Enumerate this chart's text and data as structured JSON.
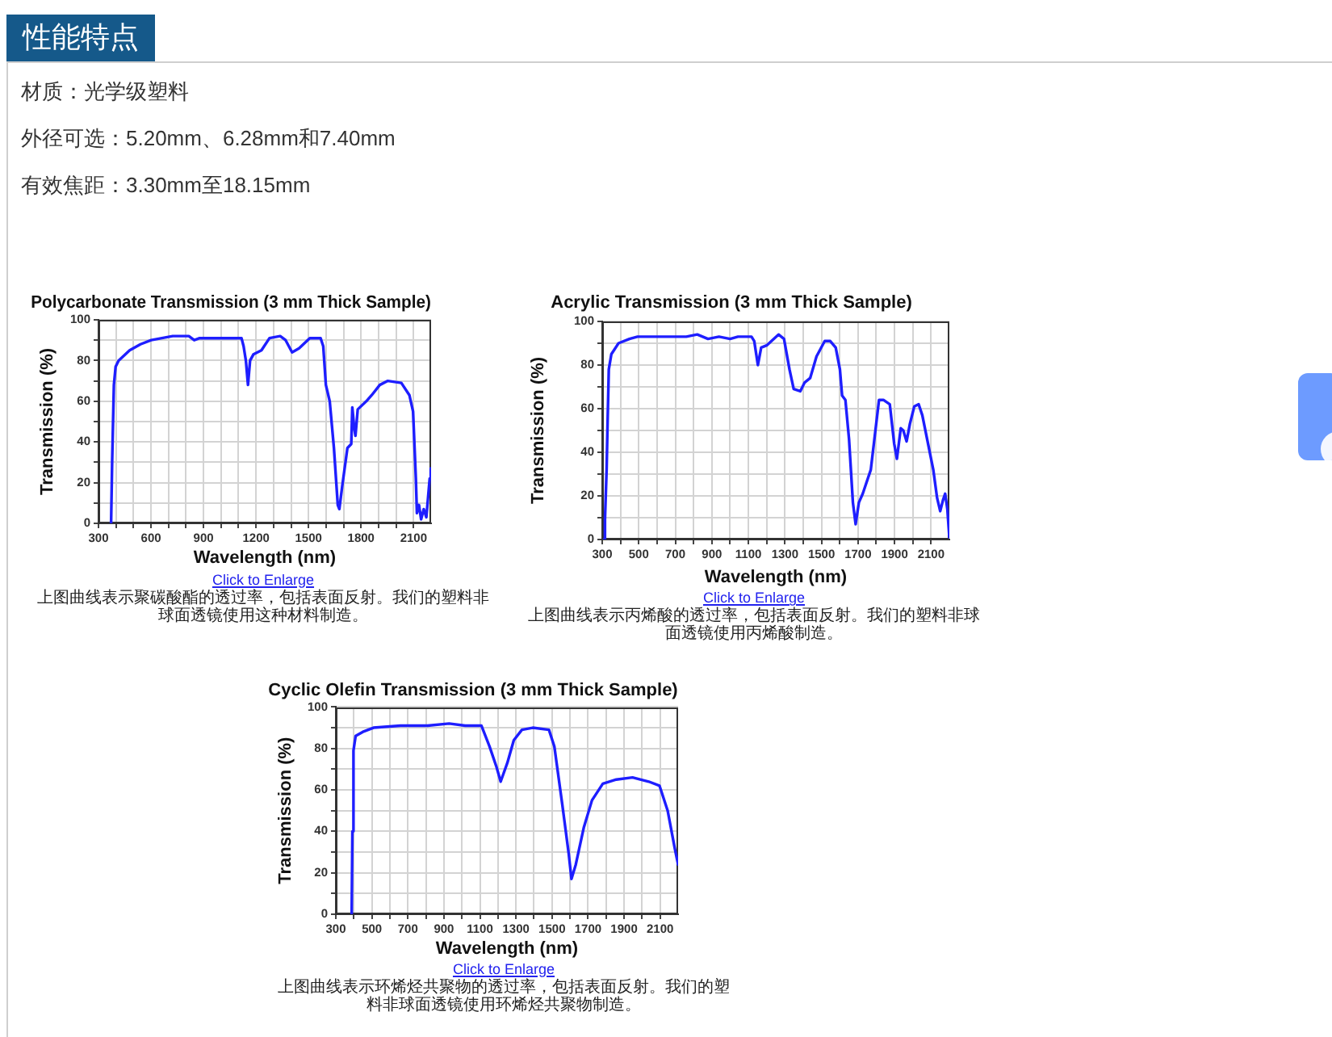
{
  "chart_data": [
    {
      "type": "other",
      "title": "性能特点",
      "annotations": [
        "材质：光学级塑料",
        "外径可选：5.20mm、6.28mm和7.40mm",
        "有效焦距：3.30mm至18.15mm"
      ]
    },
    {
      "type": "line",
      "title": "Polycarbonate Transmission (3 mm Thick Sample)",
      "xlabel": "Wavelength (nm)",
      "ylabel": "Transmission (%)",
      "color": "#1e1eff",
      "x": [
        372,
        378,
        388,
        398,
        415,
        478,
        540,
        601,
        724,
        816,
        847,
        878,
        1000,
        1093,
        1117,
        1129,
        1142,
        1154,
        1166,
        1185,
        1231,
        1277,
        1338,
        1369,
        1406,
        1446,
        1507,
        1569,
        1584,
        1599,
        1621,
        1645,
        1667,
        1676,
        1692,
        1722,
        1744,
        1750,
        1762,
        1768,
        1781,
        1830,
        1861,
        1907,
        1953,
        2030,
        2076,
        2097,
        2113,
        2119,
        2131,
        2143,
        2158,
        2173,
        2192,
        2198
      ],
      "values": [
        0,
        30,
        68,
        77,
        80,
        85,
        88,
        90,
        92,
        92,
        90,
        91,
        91,
        91,
        91,
        87,
        80,
        68,
        80,
        83,
        85,
        91,
        92,
        90,
        84,
        86,
        91,
        91,
        87,
        68,
        60,
        37,
        9,
        7,
        18,
        37,
        39,
        57,
        46,
        43,
        56,
        60,
        63,
        68,
        70,
        69,
        63,
        55,
        22,
        5,
        9,
        2,
        7,
        3,
        22,
        27
      ],
      "xlim": [
        300,
        2200
      ],
      "ylim": [
        0,
        100
      ],
      "xticks": [
        300,
        {
          "value": 400,
          "label": null
        },
        {
          "value": 500,
          "label": null
        },
        600,
        {
          "value": 700,
          "label": null
        },
        {
          "value": 800,
          "label": null
        },
        900,
        {
          "value": 1000,
          "label": null
        },
        {
          "value": 1100,
          "label": null
        },
        1200,
        {
          "value": 1300,
          "label": null
        },
        {
          "value": 1400,
          "label": null
        },
        1500,
        {
          "value": 1600,
          "label": null
        },
        {
          "value": 1700,
          "label": null
        },
        1800,
        {
          "value": 1900,
          "label": null
        },
        {
          "value": 2000,
          "label": null
        },
        2100
      ],
      "yticks": [
        0,
        {
          "value": 10,
          "label": null
        },
        20,
        {
          "value": 30,
          "label": null
        },
        40,
        {
          "value": 50,
          "label": null
        },
        60,
        {
          "value": 70,
          "label": null
        },
        80,
        {
          "value": 90,
          "label": null
        },
        100
      ],
      "grid": true,
      "annotations": [
        "Click to Enlarge",
        "上图曲线表示聚碳酸酯的透过率，包括表面反射。我们的塑料非球面透镜使用这种材料制造。"
      ]
    },
    {
      "type": "line",
      "title": "Acrylic Transmission (3 mm Thick Sample)",
      "xlabel": "Wavelength (nm)",
      "ylabel": "Transmission (%)",
      "color": "#1e1eff",
      "x": [
        310,
        315,
        324,
        330,
        336,
        350,
        389,
        449,
        493,
        760,
        820,
        879,
        939,
        1000,
        1043,
        1117,
        1132,
        1152,
        1170,
        1200,
        1265,
        1295,
        1325,
        1348,
        1384,
        1408,
        1438,
        1473,
        1518,
        1548,
        1578,
        1601,
        1613,
        1631,
        1651,
        1672,
        1687,
        1705,
        1726,
        1770,
        1815,
        1839,
        1874,
        1898,
        1913,
        1934,
        1948,
        1966,
        1984,
        2008,
        2032,
        2052,
        2112,
        2133,
        2150,
        2165,
        2177,
        2189,
        2200
      ],
      "values": [
        0,
        9,
        32,
        56,
        78,
        85,
        90,
        92,
        93,
        93,
        94,
        92,
        93,
        92,
        93,
        93,
        91,
        80,
        88,
        89,
        94,
        92,
        78,
        69,
        68,
        72,
        74,
        84,
        91,
        91,
        88,
        78,
        66,
        64,
        46,
        17,
        7,
        17,
        21,
        32,
        64,
        64,
        62,
        44,
        37,
        51,
        50,
        45,
        53,
        61,
        62,
        57,
        32,
        19,
        13,
        18,
        21,
        14,
        1
      ],
      "xlim": [
        300,
        2200
      ],
      "ylim": [
        0,
        100
      ],
      "xticks": [
        300,
        {
          "value": 400,
          "label": null
        },
        500,
        {
          "value": 600,
          "label": null
        },
        700,
        {
          "value": 800,
          "label": null
        },
        900,
        {
          "value": 1000,
          "label": null
        },
        1100,
        {
          "value": 1200,
          "label": null
        },
        1300,
        {
          "value": 1400,
          "label": null
        },
        1500,
        {
          "value": 1600,
          "label": null
        },
        1700,
        {
          "value": 1800,
          "label": null
        },
        1900,
        {
          "value": 2000,
          "label": null
        },
        2100
      ],
      "yticks": [
        0,
        {
          "value": 10,
          "label": null
        },
        20,
        {
          "value": 30,
          "label": null
        },
        40,
        {
          "value": 50,
          "label": null
        },
        60,
        {
          "value": 70,
          "label": null
        },
        80,
        {
          "value": 90,
          "label": null
        },
        100
      ],
      "grid": true,
      "annotations": [
        "Click to Enlarge",
        "上图曲线表示丙烯酸的透过率，包括表面反射。我们的塑料非球面透镜使用丙烯酸制造。"
      ]
    },
    {
      "type": "line",
      "title": "Cyclic Olefin Transmission (3 mm Thick Sample)",
      "xlabel": "Wavelength (nm)",
      "ylabel": "Transmission (%)",
      "color": "#1e1eff",
      "x": [
        388,
        392,
        398,
        410,
        450,
        509,
        659,
        809,
        929,
        1018,
        1108,
        1153,
        1192,
        1215,
        1252,
        1288,
        1333,
        1393,
        1483,
        1513,
        1557,
        1593,
        1608,
        1632,
        1677,
        1722,
        1782,
        1857,
        1947,
        2037,
        2097,
        2142,
        2181,
        2200
      ],
      "values": [
        0,
        40,
        79,
        86,
        88,
        90,
        91,
        91,
        92,
        91,
        91,
        81,
        71,
        64,
        73,
        84,
        89,
        90,
        89,
        81,
        53,
        29,
        17,
        24,
        42,
        55,
        63,
        65,
        66,
        64,
        62,
        50,
        32,
        24
      ],
      "xlim": [
        300,
        2200
      ],
      "ylim": [
        0,
        100
      ],
      "xticks": [
        300,
        {
          "value": 400,
          "label": null
        },
        500,
        {
          "value": 600,
          "label": null
        },
        700,
        {
          "value": 800,
          "label": null
        },
        900,
        {
          "value": 1000,
          "label": null
        },
        1100,
        {
          "value": 1200,
          "label": null
        },
        1300,
        {
          "value": 1400,
          "label": null
        },
        1500,
        {
          "value": 1600,
          "label": null
        },
        1700,
        {
          "value": 1800,
          "label": null
        },
        1900,
        {
          "value": 2000,
          "label": null
        },
        2100
      ],
      "yticks": [
        0,
        {
          "value": 10,
          "label": null
        },
        20,
        {
          "value": 30,
          "label": null
        },
        40,
        {
          "value": 50,
          "label": null
        },
        60,
        {
          "value": 70,
          "label": null
        },
        80,
        {
          "value": 90,
          "label": null
        },
        100
      ],
      "grid": true,
      "annotations": [
        "Click to Enlarge",
        "上图曲线表示环烯烃共聚物的透过率，包括表面反射。我们的塑料非球面透镜使用环烯烃共聚物制造。"
      ]
    }
  ]
}
